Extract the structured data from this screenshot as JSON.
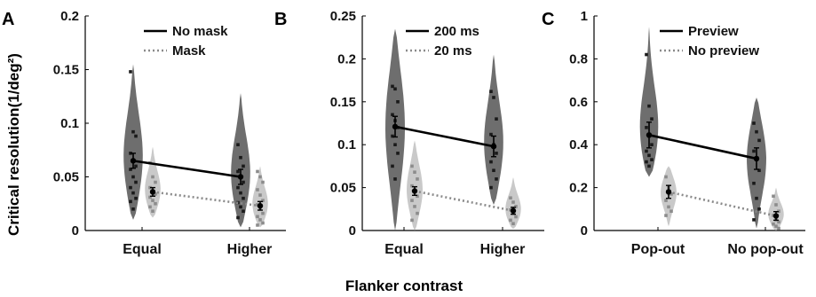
{
  "figure": {
    "ylabel": "Critical resolution(1/deg²)",
    "xlabel": "Flanker contrast"
  },
  "colors": {
    "dark_violin": "#6e6e6e",
    "light_violin": "#c9c9c9",
    "dark_points": "#1a1a1a",
    "light_points": "#8c8c8c",
    "solid_line": "#000000",
    "dotted_line": "#8a8a8a"
  },
  "chart_data": [
    {
      "type": "violin",
      "panel": "A",
      "categories": [
        "Equal",
        "Higher"
      ],
      "ylim": [
        0,
        0.2
      ],
      "yticks": [
        0,
        0.05,
        0.1,
        0.15,
        0.2
      ],
      "ytick_labels": [
        "0",
        "0.05",
        "0.1",
        "0.15",
        "0.2"
      ],
      "legend_placement": "top-right",
      "series": [
        {
          "name": "No mask",
          "line": "solid",
          "shade": "dark",
          "means": [
            0.065,
            0.05
          ],
          "errors": [
            0.007,
            0.007
          ],
          "ranges": [
            [
              0.01,
              0.155
            ],
            [
              0.003,
              0.128
            ]
          ],
          "points": [
            [
              0.148,
              0.092,
              0.088,
              0.072,
              0.065,
              0.06,
              0.057,
              0.05,
              0.045,
              0.04,
              0.035,
              0.03,
              0.027,
              0.02
            ],
            [
              0.08,
              0.068,
              0.06,
              0.055,
              0.05,
              0.045,
              0.04,
              0.035,
              0.03,
              0.026,
              0.022,
              0.018,
              0.012
            ]
          ]
        },
        {
          "name": "Mask",
          "line": "dotted",
          "shade": "light",
          "means": [
            0.036,
            0.023
          ],
          "errors": [
            0.004,
            0.004
          ],
          "ranges": [
            [
              0.012,
              0.078
            ],
            [
              0.003,
              0.06
            ]
          ],
          "points": [
            [
              0.063,
              0.05,
              0.045,
              0.04,
              0.037,
              0.034,
              0.031,
              0.028,
              0.025,
              0.022,
              0.018
            ],
            [
              0.055,
              0.05,
              0.045,
              0.038,
              0.033,
              0.028,
              0.024,
              0.02,
              0.016,
              0.013,
              0.01,
              0.007,
              0.005
            ]
          ]
        }
      ]
    },
    {
      "type": "violin",
      "panel": "B",
      "categories": [
        "Equal",
        "Higher"
      ],
      "ylim": [
        0,
        0.25
      ],
      "yticks": [
        0,
        0.05,
        0.1,
        0.15,
        0.2,
        0.25
      ],
      "ytick_labels": [
        "0",
        "0.05",
        "0.1",
        "0.15",
        "0.2",
        "0.25"
      ],
      "legend_placement": "top-right",
      "series": [
        {
          "name": "200 ms",
          "line": "solid",
          "shade": "dark",
          "means": [
            0.121,
            0.098
          ],
          "errors": [
            0.012,
            0.012
          ],
          "ranges": [
            [
              0.0,
              0.235
            ],
            [
              0.03,
              0.205
            ]
          ],
          "points": [
            [
              0.168,
              0.165,
              0.15,
              0.135,
              0.128,
              0.12,
              0.11,
              0.1,
              0.09,
              0.075,
              0.06
            ],
            [
              0.162,
              0.155,
              0.13,
              0.112,
              0.1,
              0.09,
              0.08,
              0.07,
              0.06,
              0.05
            ]
          ]
        },
        {
          "name": "20 ms",
          "line": "dotted",
          "shade": "light",
          "means": [
            0.046,
            0.023
          ],
          "errors": [
            0.005,
            0.004
          ],
          "ranges": [
            [
              0.0,
              0.105
            ],
            [
              0.002,
              0.062
            ]
          ],
          "points": [
            [
              0.075,
              0.068,
              0.06,
              0.052,
              0.046,
              0.04,
              0.035,
              0.028,
              0.02,
              0.012
            ],
            [
              0.038,
              0.033,
              0.028,
              0.024,
              0.02,
              0.016,
              0.012,
              0.008
            ]
          ]
        }
      ]
    },
    {
      "type": "violin",
      "panel": "C",
      "categories": [
        "Pop-out",
        "No pop-out"
      ],
      "ylim": [
        0,
        1
      ],
      "yticks": [
        0,
        0.2,
        0.4,
        0.6,
        0.8,
        1
      ],
      "ytick_labels": [
        "0",
        "0.2",
        "0.4",
        "0.6",
        "0.8",
        "1"
      ],
      "legend_placement": "top-right",
      "series": [
        {
          "name": "Preview",
          "line": "solid",
          "shade": "dark",
          "means": [
            0.445,
            0.335
          ],
          "errors": [
            0.06,
            0.05
          ],
          "ranges": [
            [
              0.25,
              0.95
            ],
            [
              0.01,
              0.62
            ]
          ],
          "points": [
            [
              0.82,
              0.58,
              0.52,
              0.48,
              0.44,
              0.4,
              0.37,
              0.35,
              0.33,
              0.32,
              0.3
            ],
            [
              0.5,
              0.46,
              0.42,
              0.37,
              0.33,
              0.28,
              0.22,
              0.15,
              0.1,
              0.05
            ]
          ]
        },
        {
          "name": "No preview",
          "line": "dotted",
          "shade": "light",
          "means": [
            0.18,
            0.068
          ],
          "errors": [
            0.03,
            0.02
          ],
          "ranges": [
            [
              0.02,
              0.3
            ],
            [
              0.0,
              0.2
            ]
          ],
          "points": [
            [
              0.25,
              0.2,
              0.17,
              0.14,
              0.11,
              0.09,
              0.07
            ],
            [
              0.16,
              0.12,
              0.09,
              0.07,
              0.05,
              0.04,
              0.03,
              0.02,
              0.01
            ]
          ]
        }
      ]
    }
  ]
}
